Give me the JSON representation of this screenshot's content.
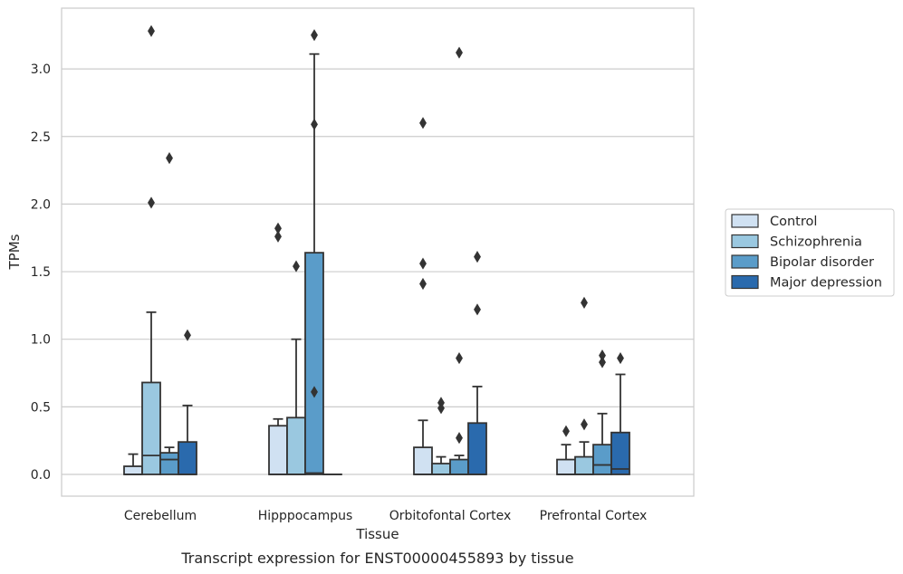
{
  "caption": "Transcript expression for ENST00000455893 by tissue",
  "chart_data": {
    "type": "box",
    "title": "",
    "xlabel": "Tissue",
    "ylabel": "TPMs",
    "ylim": [
      -0.16,
      3.45
    ],
    "yticks": [
      0.0,
      0.5,
      1.0,
      1.5,
      2.0,
      2.5,
      3.0
    ],
    "ytick_labels": [
      "0.0",
      "0.5",
      "1.0",
      "1.5",
      "2.0",
      "2.5",
      "3.0"
    ],
    "grid": "horizontal",
    "legend_position": "right",
    "categories": [
      "Cerebellum",
      "Hipppocampus",
      "Orbitofontal Cortex",
      "Prefrontal Cortex"
    ],
    "series": [
      {
        "name": "Control",
        "color": "#d0e1f2",
        "boxes": [
          {
            "whisker_low": 0.0,
            "q1": 0.0,
            "median": 0.0,
            "q3": 0.06,
            "whisker_high": 0.15,
            "outliers": []
          },
          {
            "whisker_low": 0.0,
            "q1": 0.0,
            "median": 0.0,
            "q3": 0.36,
            "whisker_high": 0.41,
            "outliers": [
              1.82,
              1.76
            ]
          },
          {
            "whisker_low": 0.0,
            "q1": 0.0,
            "median": 0.0,
            "q3": 0.2,
            "whisker_high": 0.4,
            "outliers": [
              2.6,
              1.56,
              1.41
            ]
          },
          {
            "whisker_low": 0.0,
            "q1": 0.0,
            "median": 0.0,
            "q3": 0.11,
            "whisker_high": 0.22,
            "outliers": [
              0.32
            ]
          }
        ]
      },
      {
        "name": "Schizophrenia",
        "color": "#9ac8e0",
        "boxes": [
          {
            "whisker_low": 0.0,
            "q1": 0.0,
            "median": 0.14,
            "q3": 0.68,
            "whisker_high": 1.2,
            "outliers": [
              3.28,
              2.01
            ]
          },
          {
            "whisker_low": 0.0,
            "q1": 0.0,
            "median": 0.0,
            "q3": 0.42,
            "whisker_high": 1.0,
            "outliers": [
              1.54
            ]
          },
          {
            "whisker_low": 0.0,
            "q1": 0.0,
            "median": 0.0,
            "q3": 0.08,
            "whisker_high": 0.13,
            "outliers": [
              0.53,
              0.49
            ]
          },
          {
            "whisker_low": 0.0,
            "q1": 0.0,
            "median": 0.0,
            "q3": 0.13,
            "whisker_high": 0.24,
            "outliers": [
              1.27,
              0.37
            ]
          }
        ]
      },
      {
        "name": "Bipolar disorder",
        "color": "#5a9cc9",
        "boxes": [
          {
            "whisker_low": 0.0,
            "q1": 0.0,
            "median": 0.11,
            "q3": 0.16,
            "whisker_high": 0.2,
            "outliers": [
              2.34
            ]
          },
          {
            "whisker_low": 0.0,
            "q1": 0.0,
            "median": 0.01,
            "q3": 1.64,
            "whisker_high": 3.11,
            "outliers": [
              3.25,
              2.59,
              0.61
            ]
          },
          {
            "whisker_low": 0.0,
            "q1": 0.0,
            "median": 0.0,
            "q3": 0.11,
            "whisker_high": 0.14,
            "outliers": [
              3.12,
              0.86,
              0.27
            ]
          },
          {
            "whisker_low": 0.0,
            "q1": 0.0,
            "median": 0.07,
            "q3": 0.22,
            "whisker_high": 0.45,
            "outliers": [
              0.88,
              0.83
            ]
          }
        ]
      },
      {
        "name": "Major depression",
        "color": "#2a6aad",
        "boxes": [
          {
            "whisker_low": 0.0,
            "q1": 0.0,
            "median": 0.0,
            "q3": 0.24,
            "whisker_high": 0.51,
            "outliers": [
              1.03
            ]
          },
          {
            "whisker_low": 0.0,
            "q1": 0.0,
            "median": 0.0,
            "q3": 0.0,
            "whisker_high": 0.0,
            "outliers": []
          },
          {
            "whisker_low": 0.0,
            "q1": 0.0,
            "median": 0.0,
            "q3": 0.38,
            "whisker_high": 0.65,
            "outliers": [
              1.61,
              1.22
            ]
          },
          {
            "whisker_low": 0.0,
            "q1": 0.0,
            "median": 0.04,
            "q3": 0.31,
            "whisker_high": 0.74,
            "outliers": [
              0.86
            ]
          }
        ]
      }
    ]
  }
}
